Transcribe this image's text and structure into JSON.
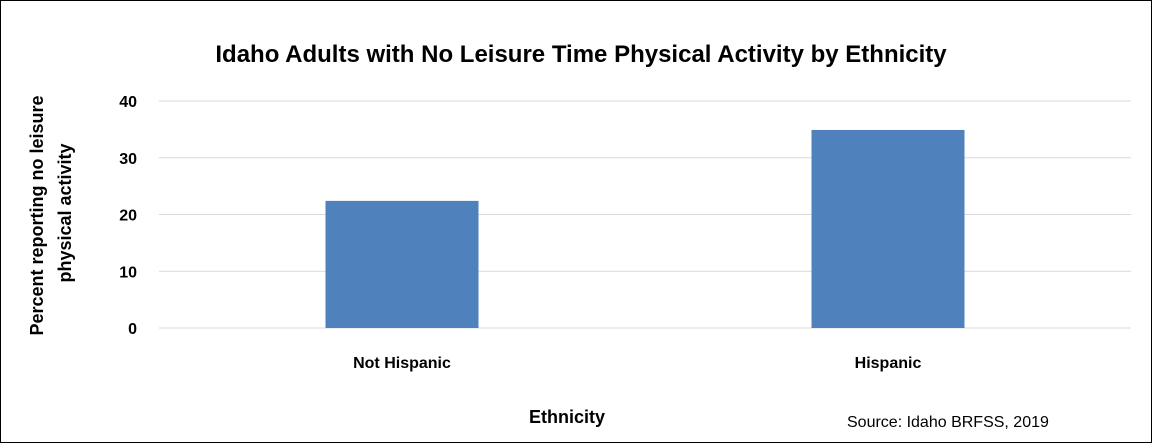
{
  "chart_data": {
    "type": "bar",
    "title": "Idaho Adults with No Leisure Time Physical Activity by Ethnicity",
    "categories": [
      "Not Hispanic",
      "Hispanic"
    ],
    "values": [
      22.4,
      34.9
    ],
    "xlabel": "Ethnicity",
    "ylabel_lines": [
      "Percent reporting no leisure",
      "physical activity"
    ],
    "ylim": [
      0,
      40
    ],
    "yticks": [
      0,
      10,
      20,
      30,
      40
    ],
    "grid": true,
    "legend": "none",
    "bar_color": "#4F81BD",
    "grid_color": "#D9D9D9"
  },
  "source_note": "Source: Idaho BRFSS, 2019"
}
